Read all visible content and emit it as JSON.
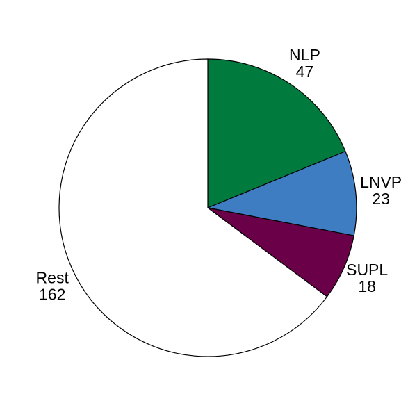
{
  "chart_data": {
    "type": "pie",
    "title": "",
    "start": "top",
    "direction": "clockwise",
    "slices": [
      {
        "label": "NLP",
        "value": 47,
        "color": "#007a3d"
      },
      {
        "label": "LNVP",
        "value": 23,
        "color": "#3f7dc2"
      },
      {
        "label": "SUPL",
        "value": 18,
        "color": "#6a0048"
      },
      {
        "label": "Rest",
        "value": 162,
        "color": "#ffffff"
      }
    ]
  }
}
